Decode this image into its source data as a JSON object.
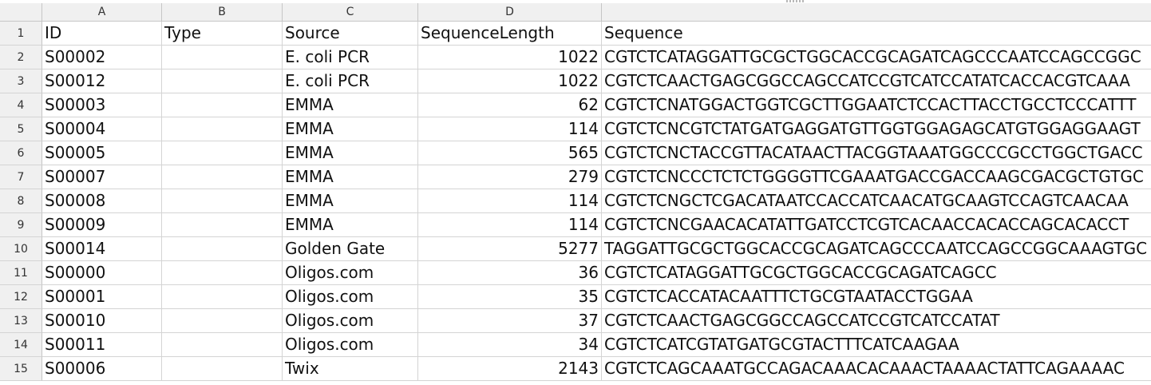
{
  "columns": [
    "A",
    "B",
    "C",
    "D",
    ""
  ],
  "header_row": {
    "number": "1",
    "cells": [
      "ID",
      "Type",
      "Source",
      "SequenceLength",
      "Sequence"
    ]
  },
  "rows": [
    {
      "number": "2",
      "id": "S00002",
      "type": "",
      "source": "E. coli PCR",
      "length": "1022",
      "sequence": "CGTCTCATAGGATTGCGCTGGCACCGCAGATCAGCCCAATCCAGCCGGC"
    },
    {
      "number": "3",
      "id": "S00012",
      "type": "",
      "source": "E. coli PCR",
      "length": "1022",
      "sequence": "CGTCTCAACTGAGCGGCCAGCCATCCGTCATCCATATCACCACGTCAAA"
    },
    {
      "number": "4",
      "id": "S00003",
      "type": "",
      "source": "EMMA",
      "length": "62",
      "sequence": "CGTCTCNATGGACTGGTCGCTTGGAATCTCCACTTACCTGCCTCCCATTT"
    },
    {
      "number": "5",
      "id": "S00004",
      "type": "",
      "source": "EMMA",
      "length": "114",
      "sequence": "CGTCTCNCGTCTATGATGAGGATGTTGGTGGAGAGCATGTGGAGGAAGT"
    },
    {
      "number": "6",
      "id": "S00005",
      "type": "",
      "source": "EMMA",
      "length": "565",
      "sequence": "CGTCTCNCTACCGTTACATAACTTACGGTAAATGGCCCGCCTGGCTGACC"
    },
    {
      "number": "7",
      "id": "S00007",
      "type": "",
      "source": "EMMA",
      "length": "279",
      "sequence": "CGTCTCNCCCTCTCTGGGGTTCGAAATGACCGACCAAGCGACGCTGTGC"
    },
    {
      "number": "8",
      "id": "S00008",
      "type": "",
      "source": "EMMA",
      "length": "114",
      "sequence": "CGTCTCNGCTCGACATAATCCACCATCAACATGCAAGTCCAGTCAACAA"
    },
    {
      "number": "9",
      "id": "S00009",
      "type": "",
      "source": "EMMA",
      "length": "114",
      "sequence": "CGTCTCNCGAACACATATTGATCCTCGTCACAACCACACCAGCACACCT"
    },
    {
      "number": "10",
      "id": "S00014",
      "type": "",
      "source": "Golden Gate",
      "length": "5277",
      "sequence": "TAGGATTGCGCTGGCACCGCAGATCAGCCCAATCCAGCCGGCAAAGTGC"
    },
    {
      "number": "11",
      "id": "S00000",
      "type": "",
      "source": "Oligos.com",
      "length": "36",
      "sequence": "CGTCTCATAGGATTGCGCTGGCACCGCAGATCAGCC"
    },
    {
      "number": "12",
      "id": "S00001",
      "type": "",
      "source": "Oligos.com",
      "length": "35",
      "sequence": "CGTCTCACCATACAATTTCTGCGTAATACCTGGAA"
    },
    {
      "number": "13",
      "id": "S00010",
      "type": "",
      "source": "Oligos.com",
      "length": "37",
      "sequence": "CGTCTCAACTGAGCGGCCAGCCATCCGTCATCCATAT"
    },
    {
      "number": "14",
      "id": "S00011",
      "type": "",
      "source": "Oligos.com",
      "length": "34",
      "sequence": "CGTCTCATCGTATGATGCGTACTTTCATCAAGAA"
    },
    {
      "number": "15",
      "id": "S00006",
      "type": "",
      "source": "Twix",
      "length": "2143",
      "sequence": "CGTCTCAGCAAATGCCAGACAAACACAAACTAAAACTATTCAGAAAAC"
    }
  ]
}
